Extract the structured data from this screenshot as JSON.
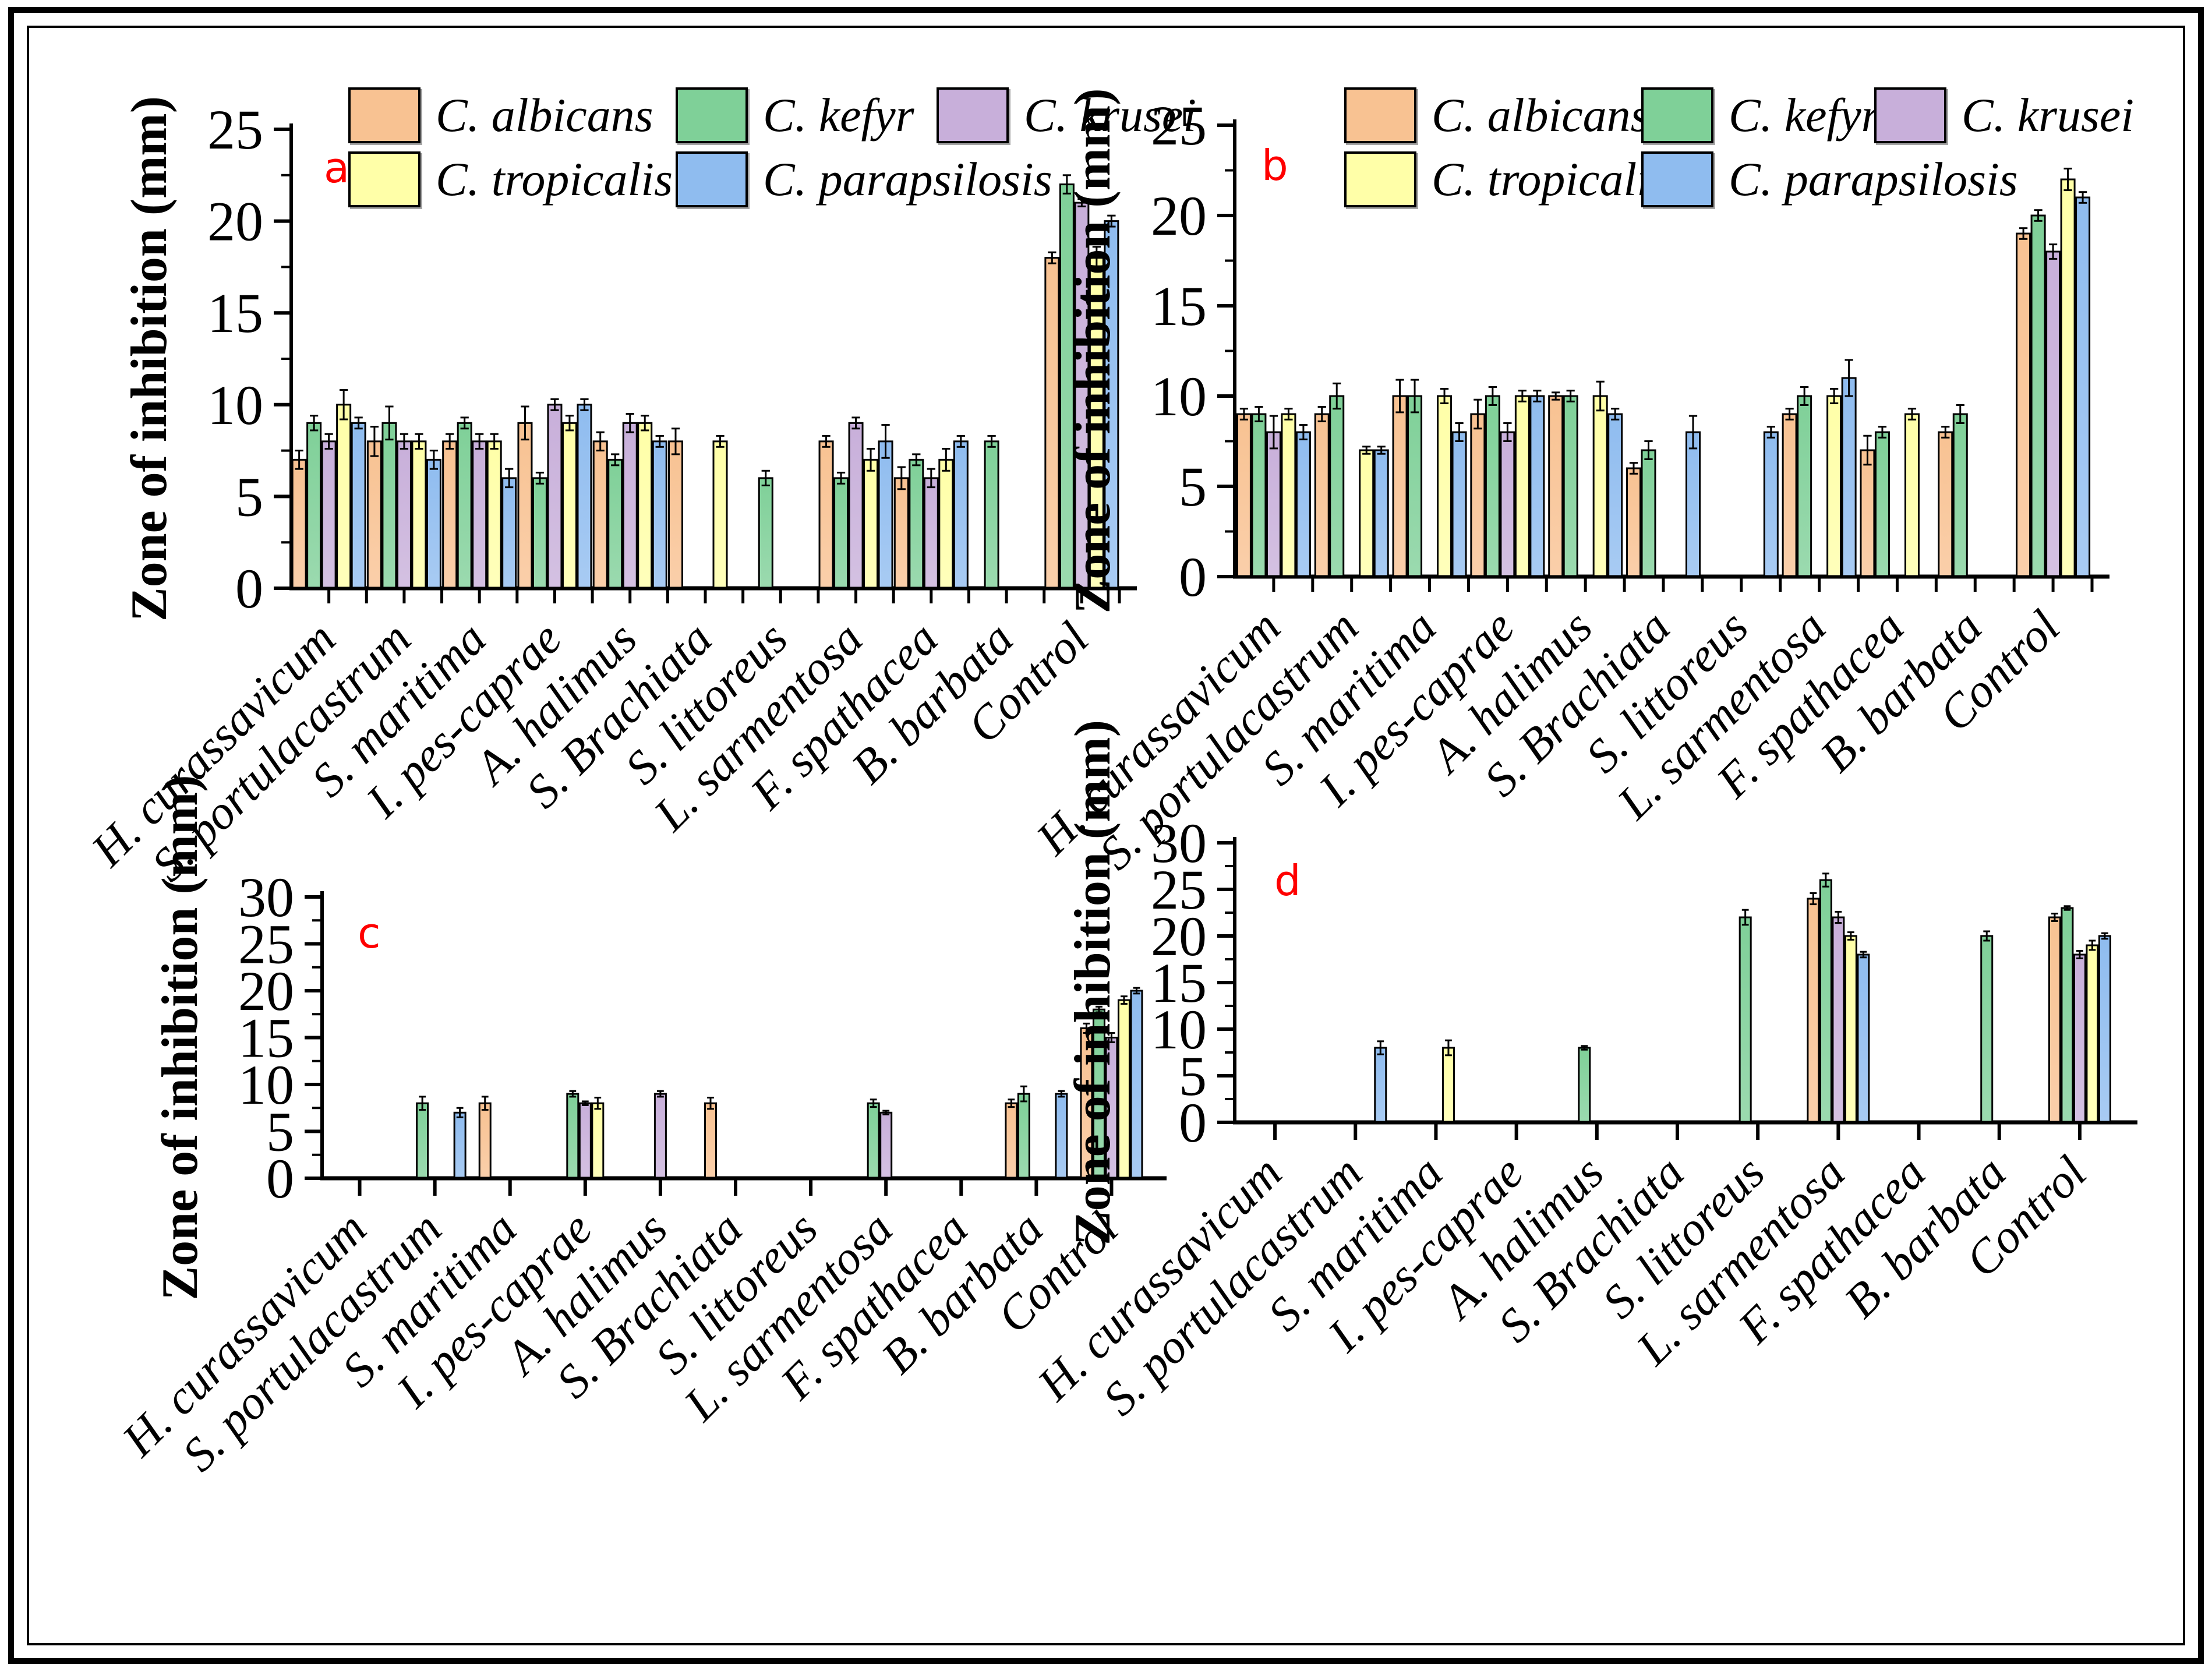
{
  "figure": {
    "y_axis_label": "Zone of inhibition (mm)",
    "panel_letter_color": "#FF0000",
    "axis_color": "#000000",
    "categories": [
      "H. curassavicum",
      "S. portulacastrum",
      "S. maritima",
      "I. pes-caprae",
      "A. halimus",
      "S. Brachiata",
      "S. littoreus",
      "L. sarmentosa",
      "F. spathacea",
      "B. barbata",
      "Control"
    ],
    "species": [
      {
        "name": "C. albicans",
        "color": "#F8C292"
      },
      {
        "name": "C. kefyr",
        "color": "#7FD098"
      },
      {
        "name": "C. krusei",
        "color": "#C8AFDA"
      },
      {
        "name": "C. tropicalis",
        "color": "#FFFFA8"
      },
      {
        "name": "C. parapsilosis",
        "color": "#8FBCEF"
      }
    ]
  },
  "chart_data": [
    {
      "type": "bar",
      "panel_letter": "a",
      "title": "",
      "xlabel": "",
      "ylabel": "Zone of inhibition (mm)",
      "ylim": [
        0,
        25
      ],
      "ytick_step": 5,
      "minor_ytick_step": 2.5,
      "grid": false,
      "legend_position": "top",
      "x_tick_label_rotation": -45,
      "categories": [
        "H. curassavicum",
        "S. portulacastrum",
        "S. maritima",
        "I. pes-caprae",
        "A. halimus",
        "S. Brachiata",
        "S. littoreus",
        "L. sarmentosa",
        "F. spathacea",
        "B. barbata",
        "Control"
      ],
      "series": [
        {
          "name": "C. albicans",
          "color": "#F8C292",
          "values": [
            7,
            8,
            8,
            9,
            8,
            8,
            null,
            8,
            6,
            null,
            18
          ],
          "errors": [
            0.5,
            0.8,
            0.4,
            0.9,
            0.5,
            0.7,
            null,
            0.3,
            0.6,
            null,
            0.3
          ]
        },
        {
          "name": "C. kefyr",
          "color": "#7FD098",
          "values": [
            9,
            9,
            9,
            6,
            7,
            null,
            6,
            6,
            7,
            8,
            22
          ],
          "errors": [
            0.4,
            0.9,
            0.3,
            0.3,
            0.3,
            null,
            0.4,
            0.3,
            0.3,
            0.3,
            0.5
          ]
        },
        {
          "name": "C. krusei",
          "color": "#C8AFDA",
          "values": [
            8,
            8,
            8,
            10,
            9,
            null,
            null,
            9,
            6,
            null,
            21
          ],
          "errors": [
            0.4,
            0.4,
            0.4,
            0.3,
            0.5,
            null,
            null,
            0.3,
            0.5,
            null,
            0.2
          ]
        },
        {
          "name": "C. tropicalis",
          "color": "#FFFFA8",
          "values": [
            10,
            8,
            8,
            9,
            9,
            8,
            null,
            7,
            7,
            null,
            18
          ],
          "errors": [
            0.8,
            0.4,
            0.4,
            0.4,
            0.4,
            0.3,
            null,
            0.6,
            0.6,
            null,
            0.6
          ]
        },
        {
          "name": "C. parapsilosis",
          "color": "#8FBCEF",
          "values": [
            9,
            7,
            6,
            10,
            8,
            null,
            null,
            8,
            8,
            null,
            20
          ],
          "errors": [
            0.3,
            0.5,
            0.5,
            0.3,
            0.3,
            null,
            null,
            0.9,
            0.3,
            null,
            0.3
          ]
        }
      ]
    },
    {
      "type": "bar",
      "panel_letter": "b",
      "title": "",
      "xlabel": "",
      "ylabel": "Zone of inhibition (mm)",
      "ylim": [
        0,
        25
      ],
      "ytick_step": 5,
      "minor_ytick_step": 2.5,
      "grid": false,
      "legend_position": "top",
      "x_tick_label_rotation": -45,
      "categories": [
        "H. curassavicum",
        "S. portulacastrum",
        "S. maritima",
        "I. pes-caprae",
        "A. halimus",
        "S. Brachiata",
        "S. littoreus",
        "L. sarmentosa",
        "F. spathacea",
        "B. barbata",
        "Control"
      ],
      "series": [
        {
          "name": "C. albicans",
          "color": "#F8C292",
          "values": [
            9,
            9,
            10,
            9,
            10,
            6,
            null,
            9,
            7,
            8,
            19
          ],
          "errors": [
            0.3,
            0.4,
            0.9,
            0.8,
            0.2,
            0.3,
            null,
            0.3,
            0.8,
            0.3,
            0.3
          ]
        },
        {
          "name": "C. kefyr",
          "color": "#7FD098",
          "values": [
            9,
            10,
            10,
            10,
            10,
            7,
            null,
            10,
            8,
            9,
            20
          ],
          "errors": [
            0.4,
            0.7,
            0.9,
            0.5,
            0.3,
            0.5,
            null,
            0.5,
            0.3,
            0.5,
            0.3
          ]
        },
        {
          "name": "C. krusei",
          "color": "#C8AFDA",
          "values": [
            8,
            null,
            null,
            8,
            null,
            null,
            null,
            null,
            null,
            null,
            18
          ],
          "errors": [
            0.9,
            null,
            null,
            0.5,
            null,
            null,
            null,
            null,
            null,
            null,
            0.4
          ]
        },
        {
          "name": "C. tropicalis",
          "color": "#FFFFA8",
          "values": [
            9,
            7,
            10,
            10,
            10,
            null,
            null,
            10,
            9,
            null,
            22
          ],
          "errors": [
            0.3,
            0.2,
            0.4,
            0.3,
            0.8,
            null,
            null,
            0.4,
            0.3,
            null,
            0.6
          ]
        },
        {
          "name": "C. parapsilosis",
          "color": "#8FBCEF",
          "values": [
            8,
            7,
            8,
            10,
            9,
            8,
            8,
            11,
            null,
            null,
            21
          ],
          "errors": [
            0.4,
            0.2,
            0.5,
            0.3,
            0.3,
            0.9,
            0.3,
            1.0,
            null,
            null,
            0.3
          ]
        }
      ]
    },
    {
      "type": "bar",
      "panel_letter": "c",
      "title": "",
      "xlabel": "",
      "ylabel": "Zone of inhibition (mm)",
      "ylim": [
        0,
        30
      ],
      "ytick_step": 5,
      "minor_ytick_step": 2.5,
      "grid": false,
      "legend_position": "none",
      "x_tick_label_rotation": -45,
      "categories": [
        "H. curassavicum",
        "S. portulacastrum",
        "S. maritima",
        "I. pes-caprae",
        "A. halimus",
        "S. Brachiata",
        "S. littoreus",
        "L. sarmentosa",
        "F. spathacea",
        "B. barbata",
        "Control"
      ],
      "series": [
        {
          "name": "C. albicans",
          "color": "#F8C292",
          "values": [
            null,
            null,
            8,
            null,
            null,
            8,
            null,
            null,
            null,
            8,
            16
          ],
          "errors": [
            null,
            null,
            0.7,
            null,
            null,
            0.6,
            null,
            null,
            null,
            0.4,
            0.5
          ]
        },
        {
          "name": "C. kefyr",
          "color": "#7FD098",
          "values": [
            null,
            8,
            null,
            9,
            null,
            null,
            null,
            8,
            null,
            9,
            18
          ],
          "errors": [
            null,
            0.7,
            null,
            0.3,
            null,
            null,
            null,
            0.4,
            null,
            0.8,
            0.3
          ]
        },
        {
          "name": "C. krusei",
          "color": "#C8AFDA",
          "values": [
            null,
            null,
            null,
            8,
            9,
            null,
            null,
            7,
            null,
            null,
            15
          ],
          "errors": [
            null,
            null,
            null,
            0.2,
            0.3,
            null,
            null,
            0.2,
            null,
            null,
            0.5
          ]
        },
        {
          "name": "C. tropicalis",
          "color": "#FFFFA8",
          "values": [
            null,
            null,
            null,
            8,
            null,
            null,
            null,
            null,
            null,
            null,
            19
          ],
          "errors": [
            null,
            null,
            null,
            0.6,
            null,
            null,
            null,
            null,
            null,
            null,
            0.4
          ]
        },
        {
          "name": "C. parapsilosis",
          "color": "#8FBCEF",
          "values": [
            null,
            7,
            null,
            null,
            null,
            null,
            null,
            null,
            null,
            9,
            20
          ],
          "errors": [
            null,
            0.5,
            null,
            null,
            null,
            null,
            null,
            null,
            null,
            0.3,
            0.3
          ]
        }
      ]
    },
    {
      "type": "bar",
      "panel_letter": "d",
      "title": "",
      "xlabel": "",
      "ylabel": "Zone of inhibition (mm)",
      "ylim": [
        0,
        30
      ],
      "ytick_step": 5,
      "minor_ytick_step": 2.5,
      "grid": false,
      "legend_position": "none",
      "x_tick_label_rotation": -45,
      "categories": [
        "H. curassavicum",
        "S. portulacastrum",
        "S. maritima",
        "I. pes-caprae",
        "A. halimus",
        "S. Brachiata",
        "S. littoreus",
        "L. sarmentosa",
        "F. spathacea",
        "B. barbata",
        "Control"
      ],
      "series": [
        {
          "name": "C. albicans",
          "color": "#F8C292",
          "values": [
            null,
            null,
            null,
            null,
            null,
            null,
            null,
            24,
            null,
            null,
            22
          ],
          "errors": [
            null,
            null,
            null,
            null,
            null,
            null,
            null,
            0.6,
            null,
            null,
            0.4
          ]
        },
        {
          "name": "C. kefyr",
          "color": "#7FD098",
          "values": [
            null,
            null,
            null,
            null,
            8,
            null,
            22,
            26,
            null,
            20,
            23
          ],
          "errors": [
            null,
            null,
            null,
            null,
            0.2,
            null,
            0.8,
            0.7,
            null,
            0.5,
            0.2
          ]
        },
        {
          "name": "C. krusei",
          "color": "#C8AFDA",
          "values": [
            null,
            null,
            null,
            null,
            null,
            null,
            null,
            22,
            null,
            null,
            18
          ],
          "errors": [
            null,
            null,
            null,
            null,
            null,
            null,
            null,
            0.6,
            null,
            null,
            0.4
          ]
        },
        {
          "name": "C. tropicalis",
          "color": "#FFFFA8",
          "values": [
            null,
            null,
            8,
            null,
            null,
            null,
            null,
            20,
            null,
            null,
            19
          ],
          "errors": [
            null,
            null,
            0.8,
            null,
            null,
            null,
            null,
            0.4,
            null,
            null,
            0.5
          ]
        },
        {
          "name": "C. parapsilosis",
          "color": "#8FBCEF",
          "values": [
            null,
            8,
            null,
            null,
            null,
            null,
            null,
            18,
            null,
            null,
            20
          ],
          "errors": [
            null,
            0.7,
            null,
            null,
            null,
            null,
            null,
            0.3,
            null,
            null,
            0.3
          ]
        }
      ]
    }
  ]
}
